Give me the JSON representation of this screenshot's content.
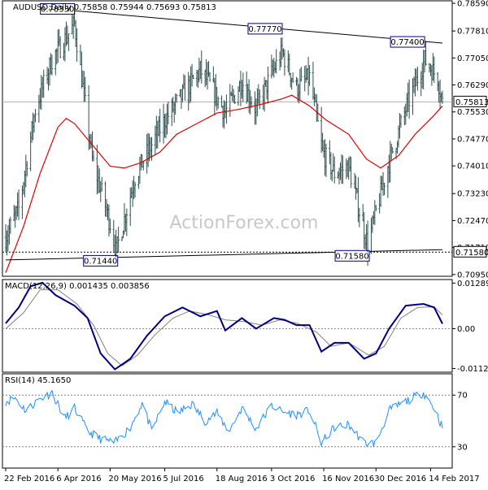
{
  "chart_data": [
    {
      "type": "candlestick",
      "name": "AUDUSD,Daily",
      "header": {
        "symbol": "AUDUSD,Daily",
        "open": "0.75858",
        "high": "0.75944",
        "low": "0.75693",
        "close": "0.75813"
      },
      "watermark": "ActionForex.com",
      "y_ticks": [
        "0.78590",
        "0.77810",
        "0.77050",
        "0.76290",
        "0.75530",
        "0.74770",
        "0.74010",
        "0.73230",
        "0.72470",
        "0.71710",
        "0.70950"
      ],
      "ylim": [
        0.709,
        0.7866
      ],
      "current_price": "0.75813",
      "current_price_value": 0.75813,
      "level_tag": "0.71580",
      "level_tag_value": 0.7158,
      "annotations": [
        {
          "label": "0.78330",
          "date": "2016-04-20",
          "value": 0.7833
        },
        {
          "label": "0.77770",
          "date": "2016-10-12",
          "value": 0.7777
        },
        {
          "label": "0.77400",
          "date": "2017-02-09",
          "value": 0.774
        },
        {
          "label": "0.71440",
          "date": "2016-05-25",
          "value": 0.7144
        },
        {
          "label": "0.71580",
          "date": "2016-12-23",
          "value": 0.7158
        }
      ],
      "trendlines": [
        {
          "from": {
            "date": "2016-04-20",
            "value": 0.7838
          },
          "to": {
            "date": "2017-02-24",
            "value": 0.7747
          }
        },
        {
          "from": {
            "date": "2016-02-22",
            "value": 0.7136
          },
          "to": {
            "date": "2017-02-24",
            "value": 0.7165
          }
        }
      ],
      "horizontal_line": 0.7158,
      "price_anchors": [
        {
          "date": "2016-02-22",
          "value": 0.72
        },
        {
          "date": "2016-03-04",
          "value": 0.728
        },
        {
          "date": "2016-03-18",
          "value": 0.756
        },
        {
          "date": "2016-04-01",
          "value": 0.77
        },
        {
          "date": "2016-04-20",
          "value": 0.78
        },
        {
          "date": "2016-05-05",
          "value": 0.742
        },
        {
          "date": "2016-05-20",
          "value": 0.724
        },
        {
          "date": "2016-05-25",
          "value": 0.716
        },
        {
          "date": "2016-06-10",
          "value": 0.737
        },
        {
          "date": "2016-06-24",
          "value": 0.746
        },
        {
          "date": "2016-07-05",
          "value": 0.753
        },
        {
          "date": "2016-07-20",
          "value": 0.76
        },
        {
          "date": "2016-08-04",
          "value": 0.767
        },
        {
          "date": "2016-08-12",
          "value": 0.763
        },
        {
          "date": "2016-08-25",
          "value": 0.755
        },
        {
          "date": "2016-09-08",
          "value": 0.764
        },
        {
          "date": "2016-09-20",
          "value": 0.756
        },
        {
          "date": "2016-10-03",
          "value": 0.766
        },
        {
          "date": "2016-10-12",
          "value": 0.772
        },
        {
          "date": "2016-10-24",
          "value": 0.762
        },
        {
          "date": "2016-11-04",
          "value": 0.765
        },
        {
          "date": "2016-11-15",
          "value": 0.744
        },
        {
          "date": "2016-11-25",
          "value": 0.738
        },
        {
          "date": "2016-12-07",
          "value": 0.74
        },
        {
          "date": "2016-12-20",
          "value": 0.722
        },
        {
          "date": "2016-12-23",
          "value": 0.718
        },
        {
          "date": "2017-01-09",
          "value": 0.74
        },
        {
          "date": "2017-01-24",
          "value": 0.756
        },
        {
          "date": "2017-02-09",
          "value": 0.77
        },
        {
          "date": "2017-02-20",
          "value": 0.765
        },
        {
          "date": "2017-02-24",
          "value": 0.7581
        }
      ],
      "moving_average": [
        {
          "date": "2016-02-22",
          "value": 0.71
        },
        {
          "date": "2016-03-08",
          "value": 0.723
        },
        {
          "date": "2016-03-22",
          "value": 0.738
        },
        {
          "date": "2016-04-06",
          "value": 0.751
        },
        {
          "date": "2016-04-13",
          "value": 0.7535
        },
        {
          "date": "2016-04-20",
          "value": 0.752
        },
        {
          "date": "2016-05-05",
          "value": 0.746
        },
        {
          "date": "2016-05-20",
          "value": 0.74
        },
        {
          "date": "2016-06-01",
          "value": 0.7395
        },
        {
          "date": "2016-06-15",
          "value": 0.741
        },
        {
          "date": "2016-07-01",
          "value": 0.744
        },
        {
          "date": "2016-07-15",
          "value": 0.749
        },
        {
          "date": "2016-08-01",
          "value": 0.752
        },
        {
          "date": "2016-08-18",
          "value": 0.755
        },
        {
          "date": "2016-09-05",
          "value": 0.756
        },
        {
          "date": "2016-09-25",
          "value": 0.7575
        },
        {
          "date": "2016-10-12",
          "value": 0.759
        },
        {
          "date": "2016-10-20",
          "value": 0.76
        },
        {
          "date": "2016-11-04",
          "value": 0.757
        },
        {
          "date": "2016-11-18",
          "value": 0.753
        },
        {
          "date": "2016-12-07",
          "value": 0.749
        },
        {
          "date": "2016-12-22",
          "value": 0.742
        },
        {
          "date": "2017-01-03",
          "value": 0.7395
        },
        {
          "date": "2017-01-18",
          "value": 0.743
        },
        {
          "date": "2017-02-01",
          "value": 0.749
        },
        {
          "date": "2017-02-16",
          "value": 0.754
        },
        {
          "date": "2017-02-24",
          "value": 0.757
        }
      ],
      "x_ticks": [
        {
          "label": "22 Feb 2016",
          "date": "2016-02-22"
        },
        {
          "label": "6 Apr 2016",
          "date": "2016-04-06"
        },
        {
          "label": "20 May 2016",
          "date": "2016-05-20"
        },
        {
          "label": "5 Jul 2016",
          "date": "2016-07-05"
        },
        {
          "label": "18 Aug 2016",
          "date": "2016-08-18"
        },
        {
          "label": "3 Oct 2016",
          "date": "2016-10-03"
        },
        {
          "label": "16 Nov 2016",
          "date": "2016-11-16"
        },
        {
          "label": "30 Dec 2016",
          "date": "2016-12-30"
        },
        {
          "label": "14 Feb 2017",
          "date": "2017-02-14"
        }
      ],
      "colors": {
        "price": "#2f4f4f",
        "moving_average": "#dd0000",
        "trendline": "#000000",
        "annotation_border": "#000080"
      }
    },
    {
      "type": "line",
      "name": "MACD(12,26,9)",
      "header": {
        "label": "MACD(12,26,9)",
        "main": "0.001435",
        "signal": "0.003856"
      },
      "y_ticks": [
        "0.012894",
        "0.00",
        "-0.011253"
      ],
      "ylim": [
        -0.0123,
        0.0139
      ],
      "series": [
        {
          "role": "main",
          "color": "#000080",
          "points": [
            {
              "date": "2016-02-22",
              "value": 0.0015
            },
            {
              "date": "2016-03-04",
              "value": 0.006
            },
            {
              "date": "2016-03-14",
              "value": 0.012
            },
            {
              "date": "2016-03-24",
              "value": 0.013
            },
            {
              "date": "2016-04-04",
              "value": 0.0095
            },
            {
              "date": "2016-04-20",
              "value": 0.0065
            },
            {
              "date": "2016-05-01",
              "value": 0.003
            },
            {
              "date": "2016-05-12",
              "value": -0.007
            },
            {
              "date": "2016-05-24",
              "value": -0.0115
            },
            {
              "date": "2016-06-06",
              "value": -0.0085
            },
            {
              "date": "2016-06-20",
              "value": -0.002
            },
            {
              "date": "2016-07-05",
              "value": 0.0035
            },
            {
              "date": "2016-07-20",
              "value": 0.006
            },
            {
              "date": "2016-08-04",
              "value": 0.0035
            },
            {
              "date": "2016-08-18",
              "value": 0.005
            },
            {
              "date": "2016-08-25",
              "value": -0.0005
            },
            {
              "date": "2016-09-08",
              "value": 0.003
            },
            {
              "date": "2016-09-20",
              "value": 0.0
            },
            {
              "date": "2016-10-05",
              "value": 0.003
            },
            {
              "date": "2016-10-14",
              "value": 0.0025
            },
            {
              "date": "2016-10-24",
              "value": 0.001
            },
            {
              "date": "2016-11-04",
              "value": 0.001
            },
            {
              "date": "2016-11-14",
              "value": -0.0065
            },
            {
              "date": "2016-11-25",
              "value": -0.004
            },
            {
              "date": "2016-12-07",
              "value": -0.004
            },
            {
              "date": "2016-12-20",
              "value": -0.0085
            },
            {
              "date": "2016-12-30",
              "value": -0.007
            },
            {
              "date": "2017-01-10",
              "value": 0.0
            },
            {
              "date": "2017-01-24",
              "value": 0.0065
            },
            {
              "date": "2017-02-08",
              "value": 0.007
            },
            {
              "date": "2017-02-17",
              "value": 0.006
            },
            {
              "date": "2017-02-24",
              "value": 0.0014
            }
          ]
        },
        {
          "role": "signal",
          "color": "#808080",
          "points": [
            {
              "date": "2016-02-22",
              "value": 0.0
            },
            {
              "date": "2016-03-08",
              "value": 0.0045
            },
            {
              "date": "2016-03-22",
              "value": 0.011
            },
            {
              "date": "2016-04-06",
              "value": 0.011
            },
            {
              "date": "2016-04-22",
              "value": 0.007
            },
            {
              "date": "2016-05-06",
              "value": 0.001
            },
            {
              "date": "2016-05-18",
              "value": -0.007
            },
            {
              "date": "2016-05-30",
              "value": -0.0105
            },
            {
              "date": "2016-06-12",
              "value": -0.0075
            },
            {
              "date": "2016-06-26",
              "value": -0.002
            },
            {
              "date": "2016-07-12",
              "value": 0.003
            },
            {
              "date": "2016-07-26",
              "value": 0.005
            },
            {
              "date": "2016-08-10",
              "value": 0.004
            },
            {
              "date": "2016-08-25",
              "value": 0.0025
            },
            {
              "date": "2016-09-10",
              "value": 0.002
            },
            {
              "date": "2016-09-25",
              "value": 0.001
            },
            {
              "date": "2016-10-10",
              "value": 0.0025
            },
            {
              "date": "2016-10-25",
              "value": 0.0015
            },
            {
              "date": "2016-11-10",
              "value": -0.001
            },
            {
              "date": "2016-11-22",
              "value": -0.005
            },
            {
              "date": "2016-12-07",
              "value": -0.004
            },
            {
              "date": "2016-12-24",
              "value": -0.0075
            },
            {
              "date": "2017-01-06",
              "value": -0.005
            },
            {
              "date": "2017-01-20",
              "value": 0.003
            },
            {
              "date": "2017-02-03",
              "value": 0.006
            },
            {
              "date": "2017-02-17",
              "value": 0.0062
            },
            {
              "date": "2017-02-24",
              "value": 0.0039
            }
          ]
        }
      ],
      "colors": {
        "main": "#000080",
        "signal": "#808080"
      }
    },
    {
      "type": "line",
      "name": "RSI(14)",
      "header": {
        "label": "RSI(14)",
        "value": "45.1650"
      },
      "y_ticks": [
        "70",
        "30"
      ],
      "levels": [
        70,
        30
      ],
      "ylim": [
        13.5,
        86.5
      ],
      "series": [
        {
          "role": "rsi",
          "color": "#1e90ff",
          "points": [
            {
              "date": "2016-02-22",
              "value": 65
            },
            {
              "date": "2016-03-01",
              "value": 68
            },
            {
              "date": "2016-03-10",
              "value": 58
            },
            {
              "date": "2016-03-20",
              "value": 66
            },
            {
              "date": "2016-04-01",
              "value": 72
            },
            {
              "date": "2016-04-12",
              "value": 52
            },
            {
              "date": "2016-04-20",
              "value": 60
            },
            {
              "date": "2016-05-01",
              "value": 42
            },
            {
              "date": "2016-05-12",
              "value": 36
            },
            {
              "date": "2016-05-24",
              "value": 33
            },
            {
              "date": "2016-06-06",
              "value": 45
            },
            {
              "date": "2016-06-16",
              "value": 64
            },
            {
              "date": "2016-06-24",
              "value": 42
            },
            {
              "date": "2016-07-05",
              "value": 65
            },
            {
              "date": "2016-07-16",
              "value": 56
            },
            {
              "date": "2016-07-28",
              "value": 63
            },
            {
              "date": "2016-08-08",
              "value": 50
            },
            {
              "date": "2016-08-18",
              "value": 56
            },
            {
              "date": "2016-08-28",
              "value": 42
            },
            {
              "date": "2016-09-08",
              "value": 60
            },
            {
              "date": "2016-09-20",
              "value": 44
            },
            {
              "date": "2016-10-03",
              "value": 62
            },
            {
              "date": "2016-10-12",
              "value": 57
            },
            {
              "date": "2016-10-24",
              "value": 55
            },
            {
              "date": "2016-11-04",
              "value": 58
            },
            {
              "date": "2016-11-14",
              "value": 33
            },
            {
              "date": "2016-11-25",
              "value": 45
            },
            {
              "date": "2016-12-07",
              "value": 47
            },
            {
              "date": "2016-12-20",
              "value": 33
            },
            {
              "date": "2016-12-30",
              "value": 33
            },
            {
              "date": "2017-01-10",
              "value": 58
            },
            {
              "date": "2017-01-24",
              "value": 65
            },
            {
              "date": "2017-02-08",
              "value": 72
            },
            {
              "date": "2017-02-17",
              "value": 60
            },
            {
              "date": "2017-02-24",
              "value": 45
            }
          ]
        }
      ],
      "colors": {
        "rsi": "#1e90ff",
        "level": "#808080"
      }
    }
  ]
}
